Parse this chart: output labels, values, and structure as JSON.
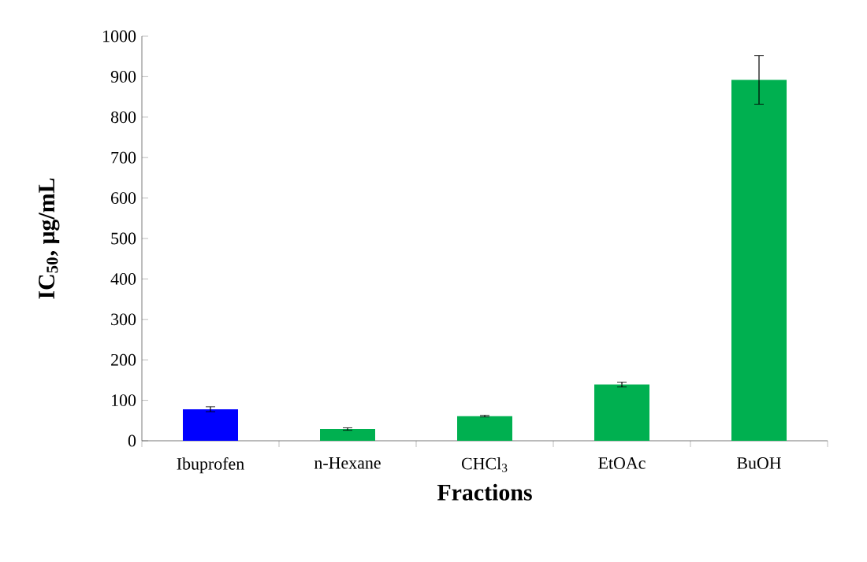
{
  "chart_data": {
    "type": "bar",
    "xlabel": "Fractions",
    "ylabel": "IC$_{50}$, μg/mL",
    "categories": [
      "Ibuprofen",
      "n-Hexane",
      "CHCl$_{3}$",
      "EtOAc",
      "BuOH"
    ],
    "values": [
      78,
      29,
      61,
      139,
      892
    ],
    "errors": [
      6,
      3,
      2,
      6,
      60
    ],
    "colors": [
      "#0000ff",
      "#00b050",
      "#00b050",
      "#00b050",
      "#00b050"
    ],
    "ylim": [
      0,
      1000
    ],
    "yticks": [
      0,
      100,
      200,
      300,
      400,
      500,
      600,
      700,
      800,
      900,
      1000
    ],
    "grid": false
  }
}
